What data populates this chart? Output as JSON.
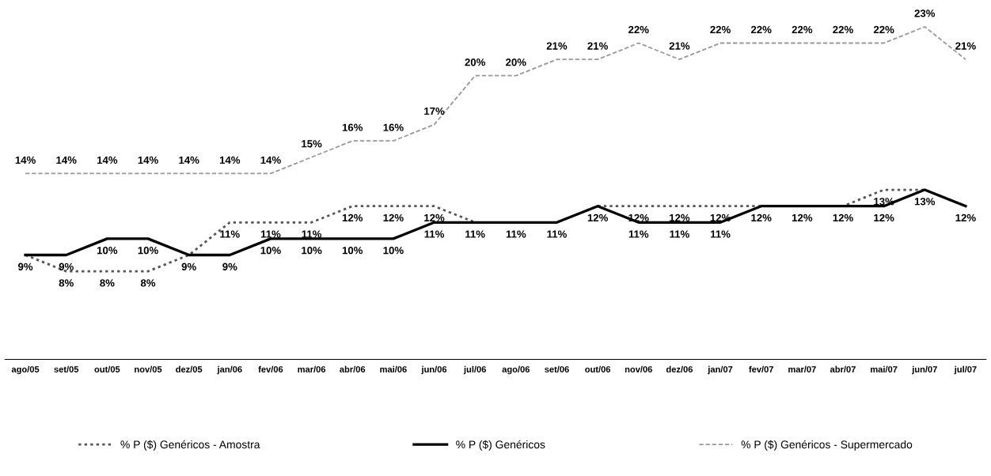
{
  "chart_data": {
    "type": "line",
    "categories": [
      "ago/05",
      "set/05",
      "out/05",
      "nov/05",
      "dez/05",
      "jan/06",
      "fev/06",
      "mar/06",
      "abr/06",
      "mai/06",
      "jun/06",
      "jul/06",
      "ago/06",
      "set/06",
      "out/06",
      "nov/06",
      "dez/06",
      "jan/07",
      "fev/07",
      "mar/07",
      "abr/07",
      "mai/07",
      "jun/07",
      "jul/07"
    ],
    "series": [
      {
        "name": "% P ($) Genéricos - Amostra",
        "color": "#555555",
        "line_style": "dotted",
        "values": [
          9,
          8,
          8,
          8,
          9,
          11,
          11,
          11,
          12,
          12,
          12,
          11,
          11,
          11,
          12,
          12,
          12,
          12,
          12,
          12,
          12,
          13,
          13,
          12
        ],
        "value_labels": [
          null,
          "8%",
          "8%",
          "8%",
          null,
          "11%",
          "11%",
          "11%",
          "12%",
          "12%",
          "12%",
          null,
          null,
          null,
          null,
          "12%",
          "12%",
          "12%",
          null,
          null,
          null,
          "13%",
          null,
          null
        ]
      },
      {
        "name": "% P ($) Genéricos",
        "color": "#000000",
        "line_style": "solid",
        "values": [
          9,
          9,
          10,
          10,
          9,
          9,
          10,
          10,
          10,
          10,
          11,
          11,
          11,
          11,
          12,
          11,
          11,
          11,
          12,
          12,
          12,
          12,
          13,
          12
        ],
        "value_labels": [
          "9%",
          "9%",
          "10%",
          "10%",
          "9%",
          "9%",
          "10%",
          "10%",
          "10%",
          "10%",
          "11%",
          "11%",
          "11%",
          "11%",
          "12%",
          "11%",
          "11%",
          "11%",
          "12%",
          "12%",
          "12%",
          "12%",
          "13%",
          "12%"
        ]
      },
      {
        "name": "% P ($) Genéricos - Supermercado",
        "color": "#999999",
        "line_style": "dashed",
        "values": [
          14,
          14,
          14,
          14,
          14,
          14,
          14,
          15,
          16,
          16,
          17,
          20,
          20,
          21,
          21,
          22,
          21,
          22,
          22,
          22,
          22,
          22,
          23,
          21
        ],
        "value_labels": [
          "14%",
          "14%",
          "14%",
          "14%",
          "14%",
          "14%",
          "14%",
          "15%",
          "16%",
          "16%",
          "17%",
          "20%",
          "20%",
          "21%",
          "21%",
          "22%",
          "21%",
          "22%",
          "22%",
          "22%",
          "22%",
          "22%",
          "23%",
          "21%"
        ]
      }
    ],
    "grid": false,
    "legend": "bottom",
    "marker": "none"
  }
}
